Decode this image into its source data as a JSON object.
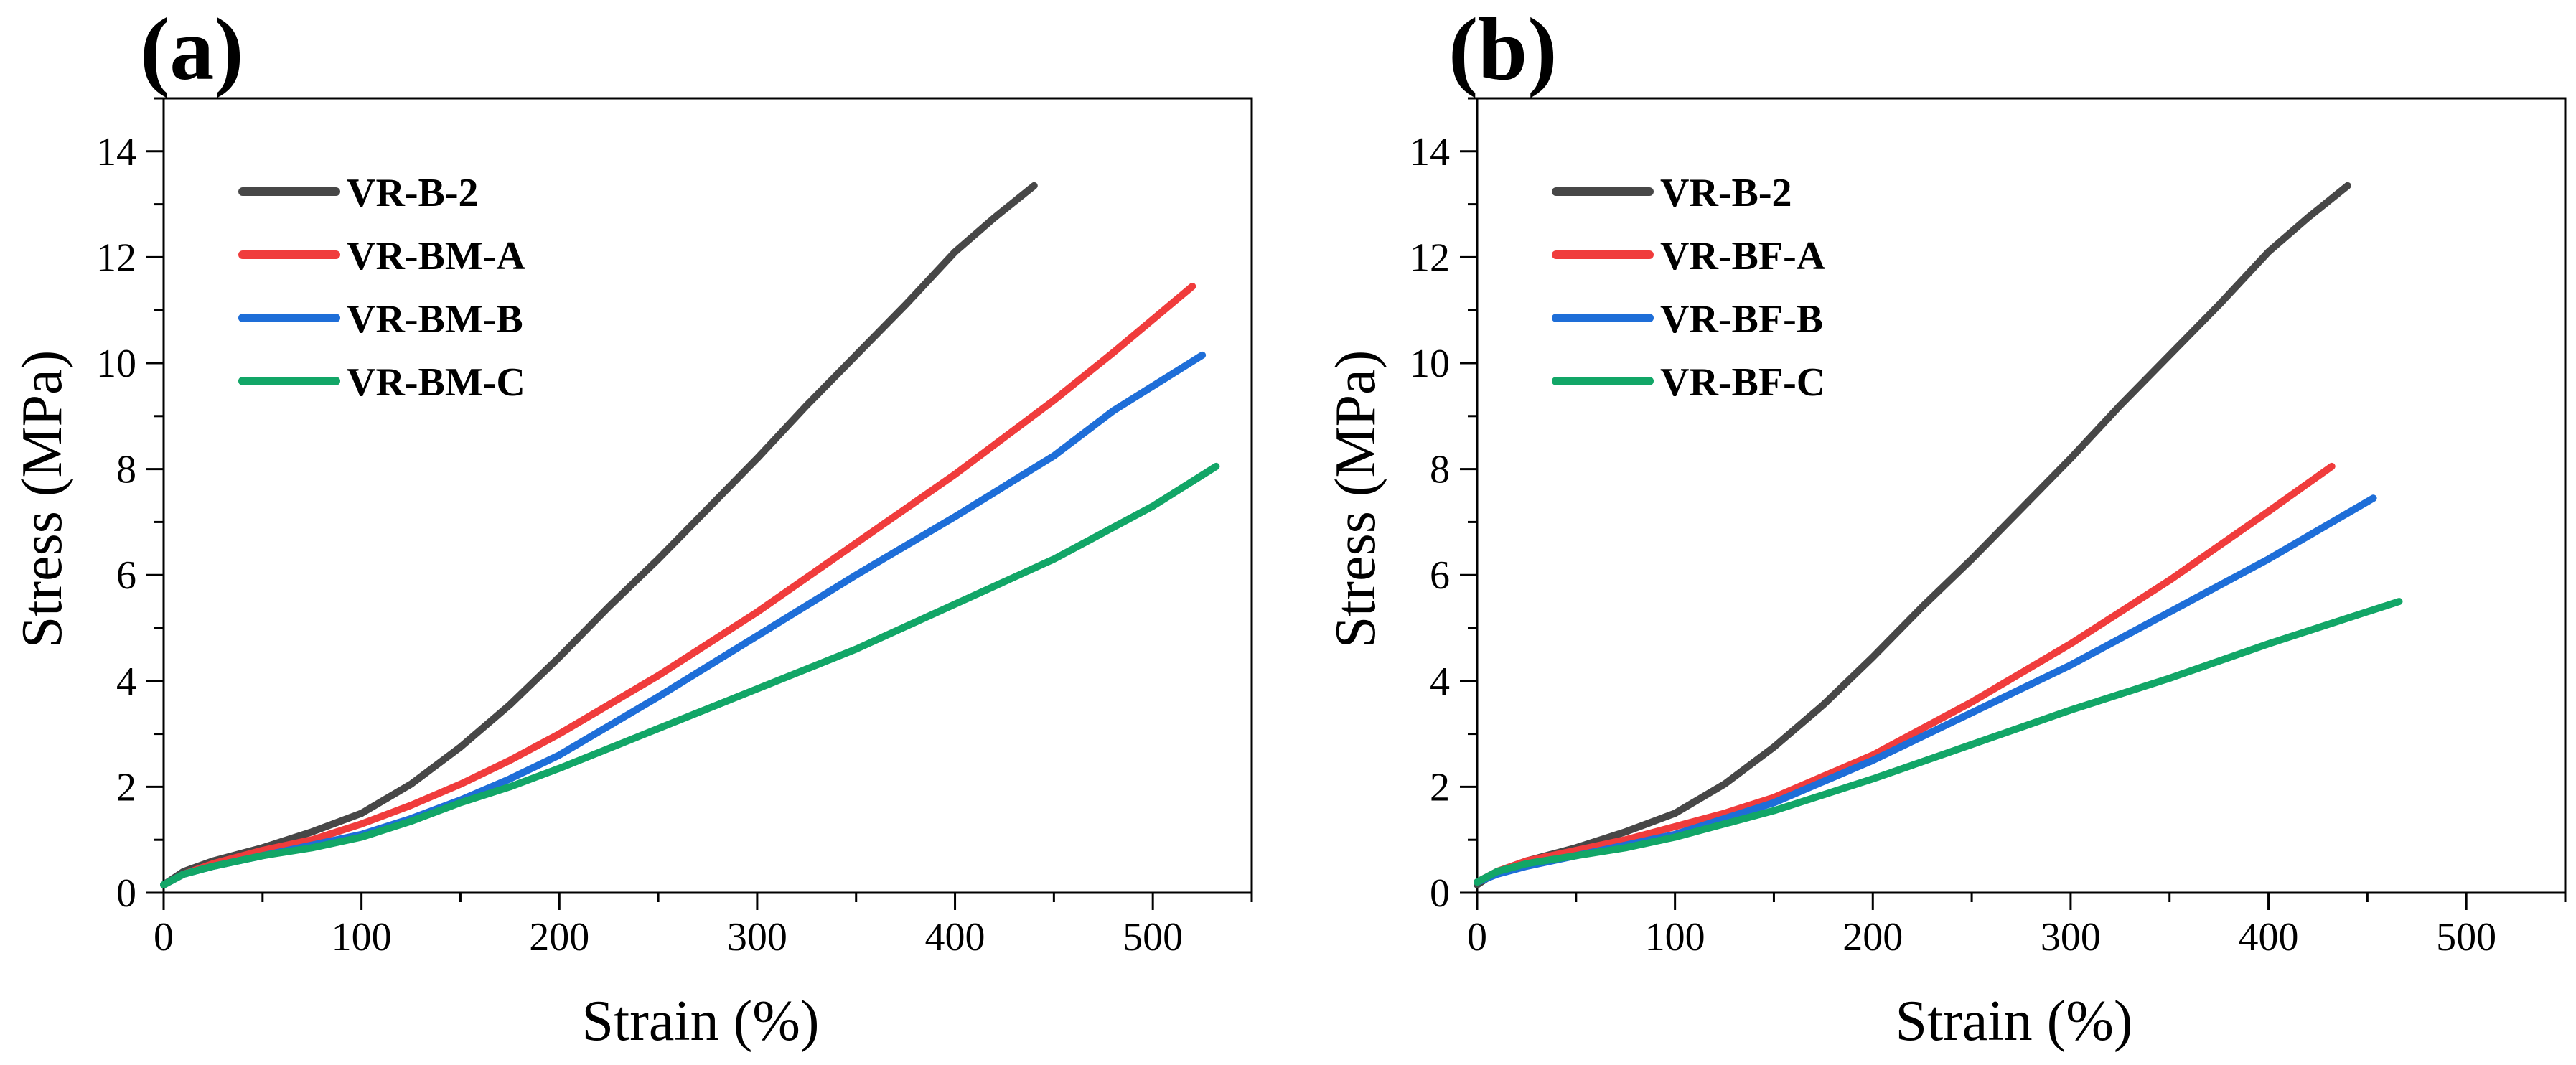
{
  "chart_data": [
    {
      "type": "line",
      "panel_label": "(a)",
      "xlabel": "Strain (%)",
      "ylabel": "Stress (MPa)",
      "xlim": [
        0,
        550
      ],
      "ylim": [
        0,
        15
      ],
      "xticks": [
        0,
        100,
        200,
        300,
        400,
        500
      ],
      "yticks": [
        0,
        2,
        4,
        6,
        8,
        10,
        12,
        14
      ],
      "grid": false,
      "legend": "top-left",
      "series": [
        {
          "name": "VR-B-2",
          "color": "#474747",
          "x": [
            0,
            10,
            25,
            50,
            75,
            100,
            125,
            150,
            175,
            200,
            225,
            250,
            275,
            300,
            325,
            350,
            375,
            400,
            420,
            440
          ],
          "y": [
            0.15,
            0.4,
            0.6,
            0.85,
            1.15,
            1.5,
            2.05,
            2.75,
            3.55,
            4.45,
            5.4,
            6.3,
            7.25,
            8.2,
            9.2,
            10.15,
            11.1,
            12.1,
            12.75,
            13.35
          ]
        },
        {
          "name": "VR-BM-A",
          "color": "#f03c3c",
          "x": [
            0,
            10,
            25,
            50,
            75,
            100,
            125,
            150,
            175,
            200,
            250,
            300,
            350,
            400,
            450,
            480,
            520
          ],
          "y": [
            0.15,
            0.35,
            0.55,
            0.8,
            1.0,
            1.3,
            1.65,
            2.05,
            2.5,
            3.0,
            4.1,
            5.3,
            6.6,
            7.9,
            9.3,
            10.2,
            11.45
          ]
        },
        {
          "name": "VR-BM-B",
          "color": "#1e6ed8",
          "x": [
            0,
            10,
            25,
            50,
            75,
            100,
            125,
            150,
            175,
            200,
            250,
            300,
            350,
            400,
            450,
            480,
            525
          ],
          "y": [
            0.15,
            0.35,
            0.5,
            0.7,
            0.9,
            1.1,
            1.4,
            1.75,
            2.15,
            2.6,
            3.7,
            4.85,
            6.0,
            7.1,
            8.25,
            9.1,
            10.15
          ]
        },
        {
          "name": "VR-BM-C",
          "color": "#12a667",
          "x": [
            0,
            10,
            25,
            50,
            75,
            100,
            125,
            150,
            175,
            200,
            250,
            300,
            350,
            400,
            450,
            500,
            532
          ],
          "y": [
            0.15,
            0.35,
            0.5,
            0.7,
            0.85,
            1.05,
            1.35,
            1.7,
            2.0,
            2.35,
            3.1,
            3.85,
            4.6,
            5.45,
            6.3,
            7.3,
            8.05
          ]
        }
      ]
    },
    {
      "type": "line",
      "panel_label": "(b)",
      "xlabel": "Strain (%)",
      "ylabel": "Stress (MPa)",
      "xlim": [
        0,
        550
      ],
      "ylim": [
        0,
        15
      ],
      "xticks": [
        0,
        100,
        200,
        300,
        400,
        500
      ],
      "yticks": [
        0,
        2,
        4,
        6,
        8,
        10,
        12,
        14
      ],
      "grid": false,
      "legend": "top-left",
      "series": [
        {
          "name": "VR-B-2",
          "color": "#474747",
          "x": [
            0,
            10,
            25,
            50,
            75,
            100,
            125,
            150,
            175,
            200,
            225,
            250,
            275,
            300,
            325,
            350,
            375,
            400,
            420,
            440
          ],
          "y": [
            0.15,
            0.4,
            0.6,
            0.85,
            1.15,
            1.5,
            2.05,
            2.75,
            3.55,
            4.45,
            5.4,
            6.3,
            7.25,
            8.2,
            9.2,
            10.15,
            11.1,
            12.1,
            12.75,
            13.35
          ]
        },
        {
          "name": "VR-BF-A",
          "color": "#f03c3c",
          "x": [
            0,
            10,
            25,
            50,
            75,
            100,
            125,
            150,
            175,
            200,
            250,
            300,
            350,
            400,
            432
          ],
          "y": [
            0.2,
            0.4,
            0.6,
            0.8,
            1.0,
            1.25,
            1.5,
            1.8,
            2.2,
            2.6,
            3.6,
            4.7,
            5.9,
            7.2,
            8.05
          ]
        },
        {
          "name": "VR-BF-B",
          "color": "#1e6ed8",
          "x": [
            0,
            10,
            25,
            50,
            75,
            100,
            125,
            150,
            175,
            200,
            250,
            300,
            350,
            400,
            453
          ],
          "y": [
            0.2,
            0.35,
            0.5,
            0.7,
            0.9,
            1.1,
            1.4,
            1.7,
            2.1,
            2.5,
            3.4,
            4.3,
            5.3,
            6.3,
            7.45
          ]
        },
        {
          "name": "VR-BF-C",
          "color": "#12a667",
          "x": [
            0,
            10,
            25,
            50,
            75,
            100,
            125,
            150,
            175,
            200,
            250,
            300,
            350,
            400,
            466
          ],
          "y": [
            0.2,
            0.4,
            0.55,
            0.7,
            0.85,
            1.05,
            1.3,
            1.55,
            1.85,
            2.15,
            2.8,
            3.45,
            4.05,
            4.7,
            5.5
          ]
        }
      ]
    }
  ]
}
